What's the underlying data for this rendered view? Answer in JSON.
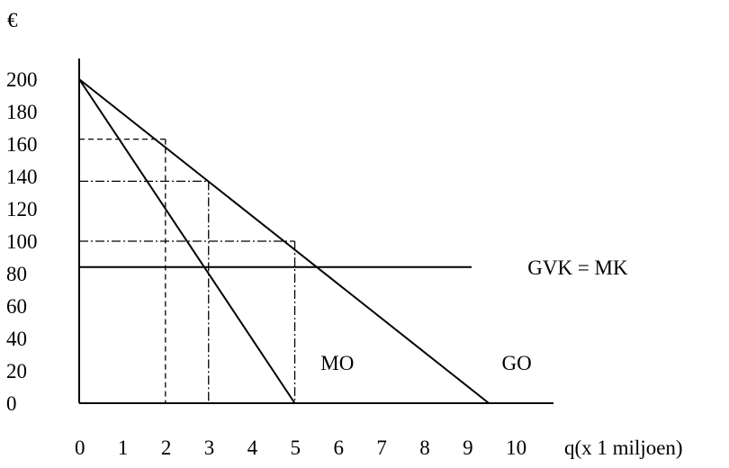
{
  "chart_data": {
    "type": "line",
    "y_unit_label": "€",
    "xlabel": "q(x 1 miljoen)",
    "x_ticks": [
      "0",
      "1",
      "2",
      "3",
      "4",
      "5",
      "6",
      "7",
      "8",
      "9",
      "10"
    ],
    "y_ticks": [
      "0",
      "20",
      "40",
      "60",
      "80",
      "100",
      "120",
      "140",
      "160",
      "180",
      "200"
    ],
    "xlim": [
      0,
      11
    ],
    "ylim": [
      0,
      200
    ],
    "series": [
      {
        "name": "GO",
        "points": [
          [
            0,
            200
          ],
          [
            9.5,
            0
          ]
        ]
      },
      {
        "name": "MO",
        "points": [
          [
            0,
            200
          ],
          [
            5,
            0
          ]
        ]
      },
      {
        "name": "GVK = MK",
        "points": [
          [
            0,
            84
          ],
          [
            9.1,
            84
          ]
        ]
      }
    ],
    "guides": [
      {
        "style": "dashed",
        "x": 2,
        "y": 163
      },
      {
        "style": "dashdot",
        "x": 3,
        "y": 137
      },
      {
        "style": "dashdot",
        "x": 5,
        "y": 100
      }
    ],
    "annotations": [
      {
        "text": "GVK = MK",
        "x": 10.4,
        "y": 84
      },
      {
        "text": "MO",
        "x": 5.6,
        "y": 25
      },
      {
        "text": "GO",
        "x": 9.8,
        "y": 25
      }
    ]
  }
}
